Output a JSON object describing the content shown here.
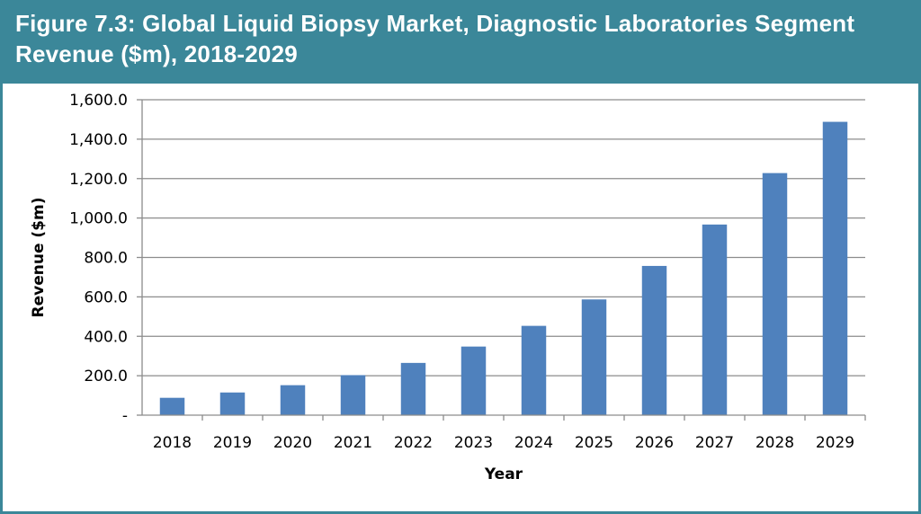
{
  "header": {
    "title": "Figure 7.3: Global Liquid Biopsy Market, Diagnostic Laboratories Segment\nRevenue ($m), 2018-2029"
  },
  "colors": {
    "header_bg": "#3b8799",
    "bar": "#4f81bd",
    "grid": "#8c8c8c"
  },
  "chart_data": {
    "type": "bar",
    "title": "Figure 7.3: Global Liquid Biopsy Market, Diagnostic Laboratories Segment Revenue ($m), 2018-2029",
    "xlabel": "Year",
    "ylabel": "Revenue ($m)",
    "ylim": [
      0,
      1600
    ],
    "yticks": [
      0,
      200,
      400,
      600,
      800,
      1000,
      1200,
      1400,
      1600
    ],
    "ytick_labels": [
      "-",
      "200.0",
      "400.0",
      "600.0",
      "800.0",
      "1,000.0",
      "1,200.0",
      "1,400.0",
      "1,600.0"
    ],
    "categories": [
      "2018",
      "2019",
      "2020",
      "2021",
      "2022",
      "2023",
      "2024",
      "2025",
      "2026",
      "2027",
      "2028",
      "2029"
    ],
    "values": [
      88,
      115,
      152,
      203,
      265,
      348,
      453,
      587,
      757,
      967,
      1228,
      1488
    ],
    "grid": true,
    "legend": "none"
  }
}
